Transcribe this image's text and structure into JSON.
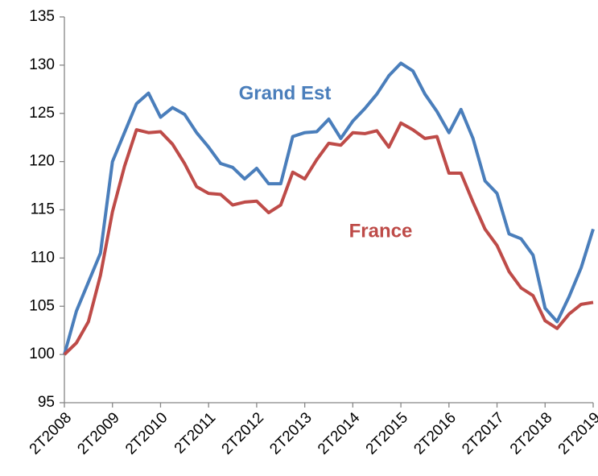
{
  "chart_data": {
    "type": "line",
    "categories": [
      "2T2008",
      null,
      null,
      null,
      "2T2009",
      null,
      null,
      null,
      "2T2010",
      null,
      null,
      null,
      "2T2011",
      null,
      null,
      null,
      "2T2012",
      null,
      null,
      null,
      "2T2013",
      null,
      null,
      null,
      "2T2014",
      null,
      null,
      null,
      "2T2015",
      null,
      null,
      null,
      "2T2016",
      null,
      null,
      null,
      "2T2017",
      null,
      null,
      null,
      "2T2018",
      null,
      null,
      null,
      "2T2019"
    ],
    "series": [
      {
        "name": "Grand Est",
        "color": "#4a7ebb",
        "values": [
          100,
          104.5,
          107.5,
          110.5,
          120,
          123,
          126,
          127.1,
          124.6,
          125.6,
          124.9,
          123,
          121.5,
          119.8,
          119.4,
          118.2,
          119.3,
          117.7,
          117.7,
          122.6,
          123,
          123.1,
          124.4,
          122.4,
          124.2,
          125.5,
          127,
          128.9,
          130.2,
          129.4,
          127,
          125.2,
          123,
          125.4,
          122.4,
          118,
          116.7,
          112.5,
          112,
          110.3,
          104.8,
          103.4,
          106,
          109,
          113
        ]
      },
      {
        "name": "France",
        "color": "#be4b48",
        "values": [
          100,
          101.2,
          103.4,
          108.2,
          114.8,
          119.5,
          123.3,
          123,
          123.1,
          121.8,
          119.8,
          117.4,
          116.7,
          116.6,
          115.5,
          115.8,
          115.9,
          114.7,
          115.5,
          118.9,
          118.2,
          120.2,
          121.9,
          121.7,
          123,
          122.9,
          123.2,
          121.5,
          124,
          123.3,
          122.4,
          122.6,
          118.8,
          118.8,
          115.8,
          113,
          111.3,
          108.6,
          106.9,
          106.1,
          103.5,
          102.7,
          104.2,
          105.2,
          105.4
        ]
      }
    ],
    "ylim": [
      95,
      135
    ],
    "yticks": [
      95,
      100,
      105,
      110,
      115,
      120,
      125,
      130,
      135
    ],
    "grid": false
  }
}
